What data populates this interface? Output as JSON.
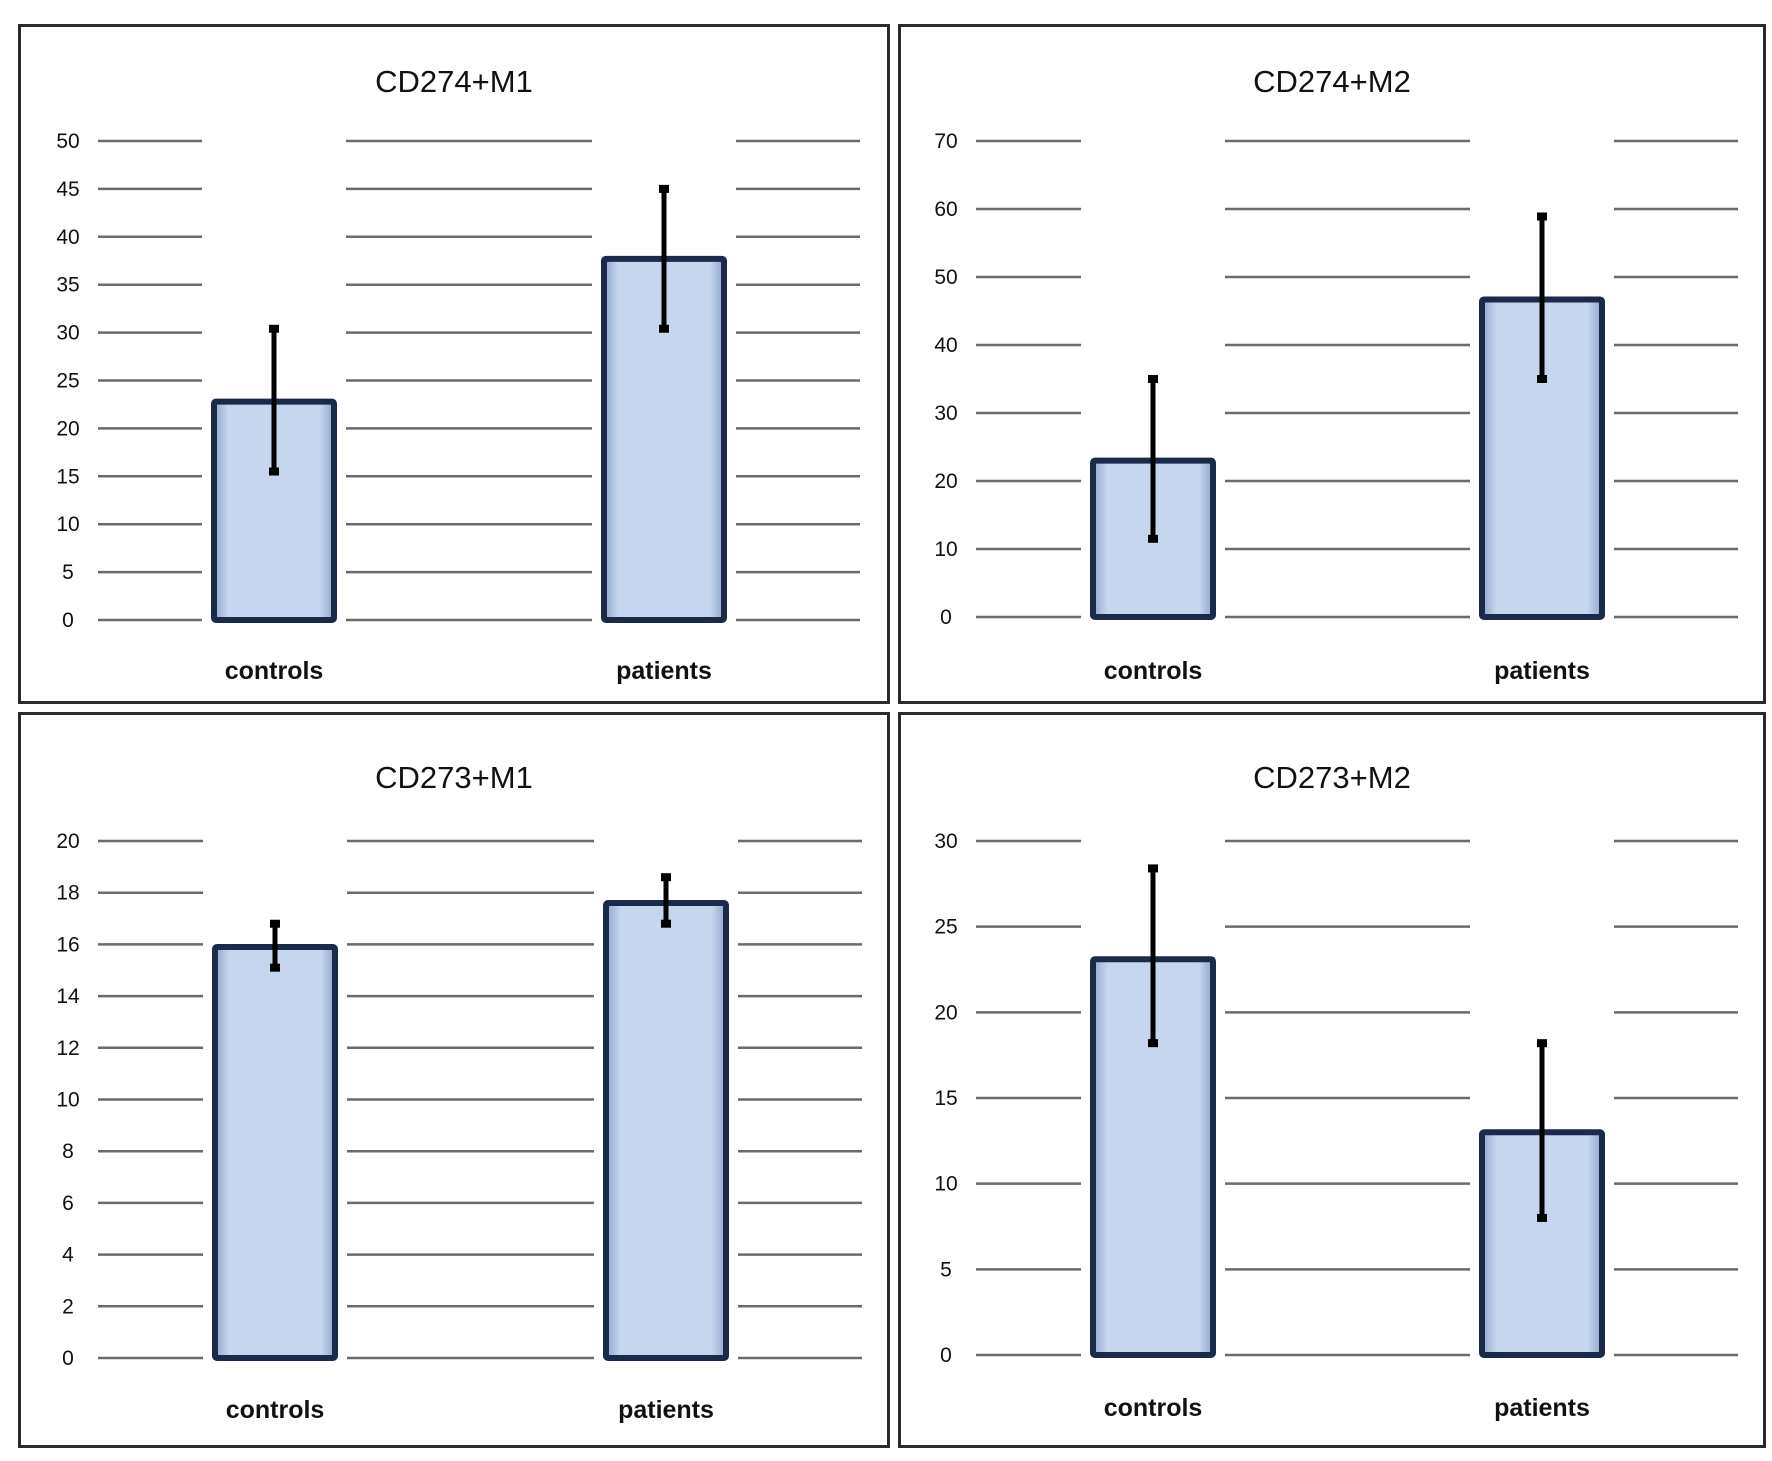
{
  "colors": {
    "bar_fill": "#c6d6ee",
    "bar_border": "#1a2a48",
    "gridline": "#6b6b6b",
    "error_bar": "#000000",
    "panel_border": "#2b2b2b"
  },
  "chart_data": [
    {
      "type": "bar",
      "title": "CD274+M1",
      "categories": [
        "controls",
        "patients"
      ],
      "values": [
        22.8,
        37.7
      ],
      "error_low": [
        15.5,
        30.4
      ],
      "error_high": [
        30.4,
        45.0
      ],
      "ylim": [
        0,
        50
      ],
      "yticks": [
        0,
        5,
        10,
        15,
        20,
        25,
        30,
        35,
        40,
        45,
        50
      ],
      "grid": true
    },
    {
      "type": "bar",
      "title": "CD274+M2",
      "categories": [
        "controls",
        "patients"
      ],
      "values": [
        23.0,
        46.7
      ],
      "error_low": [
        11.5,
        35.0
      ],
      "error_high": [
        35.0,
        58.9
      ],
      "ylim": [
        0,
        70
      ],
      "yticks": [
        0,
        10,
        20,
        30,
        40,
        50,
        60,
        70
      ],
      "grid": true
    },
    {
      "type": "bar",
      "title": "CD273+M1",
      "categories": [
        "controls",
        "patients"
      ],
      "values": [
        15.9,
        17.6
      ],
      "error_low": [
        15.1,
        16.8
      ],
      "error_high": [
        16.8,
        18.6
      ],
      "ylim": [
        0,
        20
      ],
      "yticks": [
        0,
        2,
        4,
        6,
        8,
        10,
        12,
        14,
        16,
        18,
        20
      ],
      "grid": true
    },
    {
      "type": "bar",
      "title": "CD273+M2",
      "categories": [
        "controls",
        "patients"
      ],
      "values": [
        23.1,
        13.0
      ],
      "error_low": [
        18.2,
        8.0
      ],
      "error_high": [
        28.4,
        18.2
      ],
      "ylim": [
        0,
        30
      ],
      "yticks": [
        0,
        5,
        10,
        15,
        20,
        25,
        30
      ],
      "grid": true
    }
  ]
}
